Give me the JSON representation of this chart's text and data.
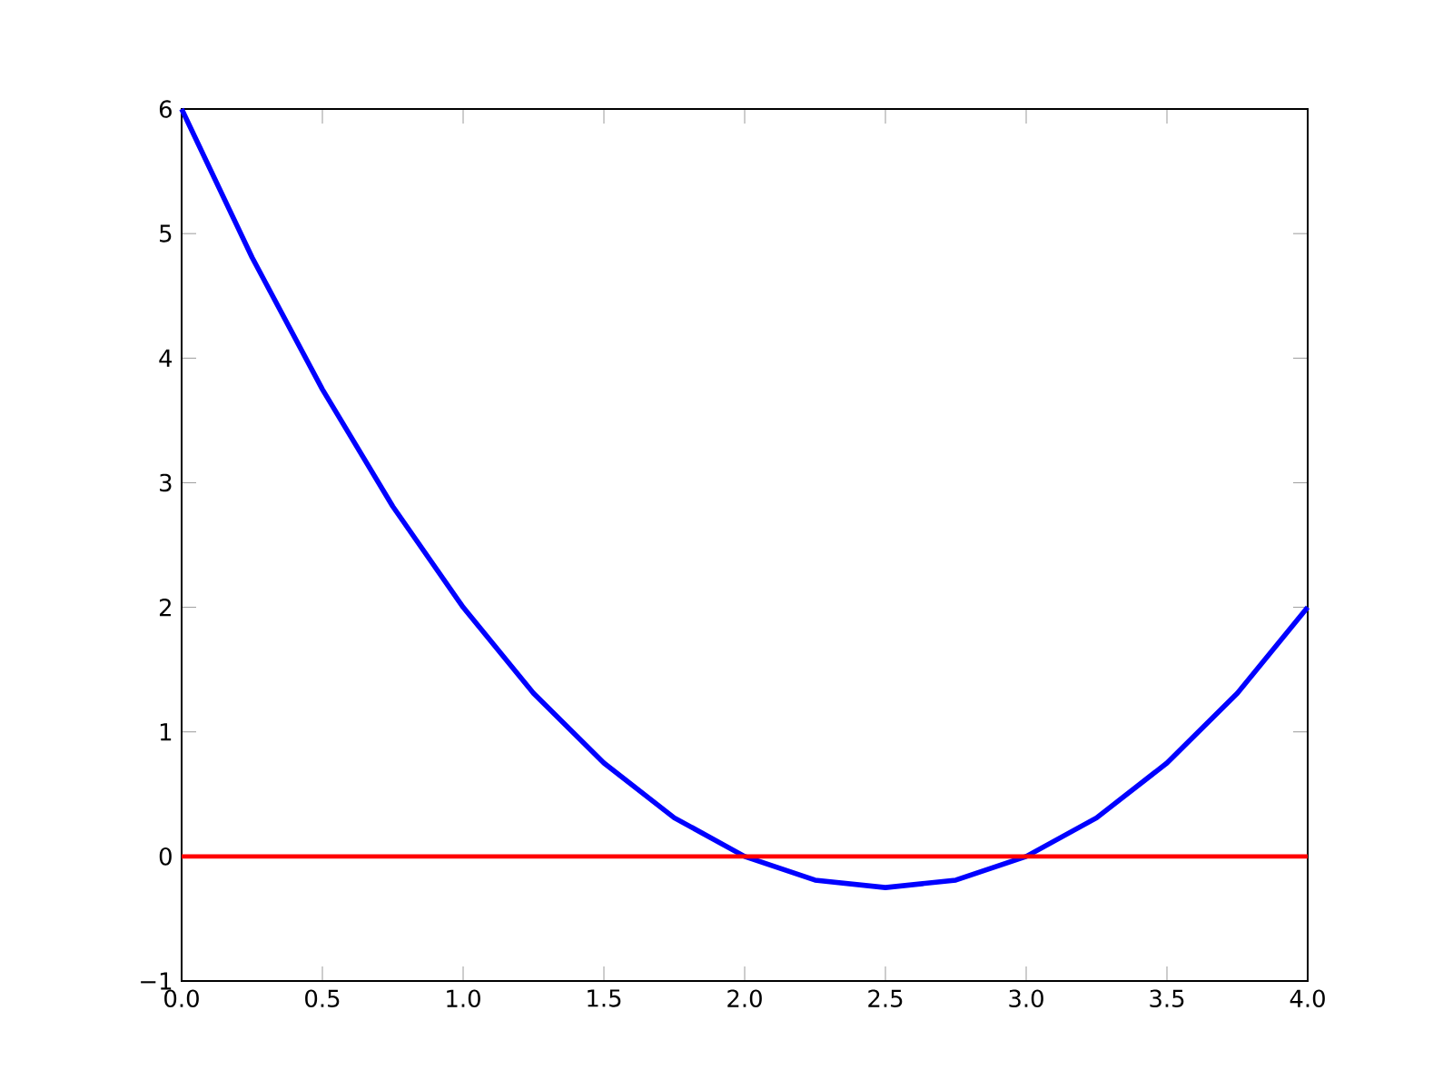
{
  "chart_data": {
    "type": "line",
    "x": [
      0,
      0.25,
      0.5,
      0.75,
      1,
      1.25,
      1.5,
      1.75,
      2,
      2.25,
      2.5,
      2.75,
      3,
      3.25,
      3.5,
      3.75,
      4
    ],
    "series": [
      {
        "color": "#0000ff",
        "values": [
          6,
          4.81,
          3.75,
          2.81,
          2,
          1.31,
          0.75,
          0.31,
          0,
          -0.19,
          -0.25,
          -0.19,
          0,
          0.31,
          0.75,
          1.31,
          2
        ]
      }
    ],
    "ref_lines": [
      {
        "axis": "y",
        "value": 0,
        "color": "#ff0000"
      }
    ],
    "xlim": [
      0,
      4
    ],
    "ylim": [
      -1,
      6
    ],
    "xticks": [
      {
        "value": 0,
        "label": "0.0"
      },
      {
        "value": 0.5,
        "label": "0.5"
      },
      {
        "value": 1,
        "label": "1.0"
      },
      {
        "value": 1.5,
        "label": "1.5"
      },
      {
        "value": 2,
        "label": "2.0"
      },
      {
        "value": 2.5,
        "label": "2.5"
      },
      {
        "value": 3,
        "label": "3.0"
      },
      {
        "value": 3.5,
        "label": "3.5"
      },
      {
        "value": 4,
        "label": "4.0"
      }
    ],
    "yticks": [
      {
        "value": -1,
        "label": "−1"
      },
      0,
      1,
      2,
      3,
      4,
      5,
      6
    ]
  }
}
